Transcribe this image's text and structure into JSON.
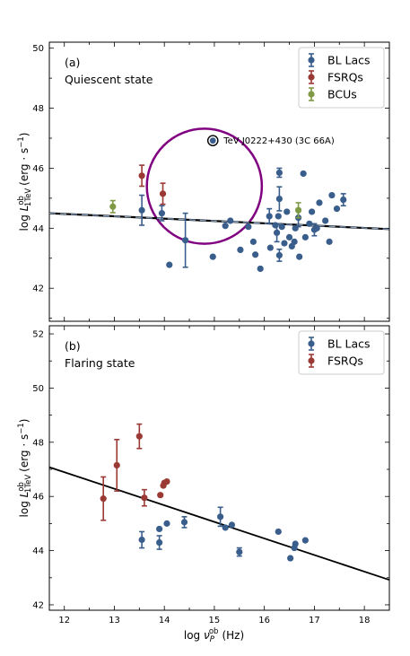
{
  "chart_data": [
    {
      "type": "scatter",
      "panel_label": "(a)",
      "panel_title": "Quiescent state",
      "ylabel_base": "log L",
      "ylabel_sup": "ob",
      "ylabel_sub": "1TeV",
      "ylabel_unit": "(erg · s",
      "ylabel_unit_exp": "−1",
      "ylabel_close": ")",
      "xlim": [
        11.7,
        18.5
      ],
      "ylim": [
        40.9,
        50.2
      ],
      "yticks": [
        "42",
        "44",
        "46",
        "48",
        "50"
      ],
      "ytick_values": [
        42,
        44,
        46,
        48,
        50
      ],
      "xticks": [
        "12",
        "13",
        "14",
        "15",
        "16",
        "17",
        "18"
      ],
      "xtick_values": [
        12,
        13,
        14,
        15,
        16,
        17,
        18
      ],
      "show_x_tick_labels": false,
      "legend_position": "top-right",
      "series": [
        {
          "name": "BL Lacs",
          "color": "#3a5e8c",
          "points": [
            {
              "x": 13.55,
              "y": 44.6,
              "err": 0.5
            },
            {
              "x": 13.95,
              "y": 44.5,
              "err": 0.25
            },
            {
              "x": 14.1,
              "y": 42.78
            },
            {
              "x": 14.42,
              "y": 43.6,
              "err": 0.9
            },
            {
              "x": 14.97,
              "y": 43.05
            },
            {
              "x": 15.22,
              "y": 44.08
            },
            {
              "x": 15.32,
              "y": 44.25
            },
            {
              "x": 15.52,
              "y": 43.28
            },
            {
              "x": 15.68,
              "y": 44.05
            },
            {
              "x": 15.78,
              "y": 43.55
            },
            {
              "x": 15.82,
              "y": 43.12
            },
            {
              "x": 15.92,
              "y": 42.65
            },
            {
              "x": 16.1,
              "y": 44.4,
              "err": 0.25
            },
            {
              "x": 16.12,
              "y": 43.35
            },
            {
              "x": 16.22,
              "y": 44.1
            },
            {
              "x": 16.25,
              "y": 43.85,
              "err": 0.3
            },
            {
              "x": 16.28,
              "y": 44.4
            },
            {
              "x": 16.3,
              "y": 45.85,
              "err": 0.15
            },
            {
              "x": 16.3,
              "y": 44.98,
              "err": 0.4
            },
            {
              "x": 16.3,
              "y": 43.1,
              "err": 0.2
            },
            {
              "x": 16.35,
              "y": 44.05
            },
            {
              "x": 16.4,
              "y": 43.5
            },
            {
              "x": 16.45,
              "y": 44.55
            },
            {
              "x": 16.5,
              "y": 43.7
            },
            {
              "x": 16.55,
              "y": 43.4
            },
            {
              "x": 16.6,
              "y": 43.55
            },
            {
              "x": 16.62,
              "y": 44.0
            },
            {
              "x": 16.68,
              "y": 44.35,
              "err": 0.3
            },
            {
              "x": 16.7,
              "y": 43.05
            },
            {
              "x": 16.78,
              "y": 45.82
            },
            {
              "x": 16.82,
              "y": 43.7
            },
            {
              "x": 16.9,
              "y": 44.15
            },
            {
              "x": 16.95,
              "y": 44.55
            },
            {
              "x": 17.0,
              "y": 43.95,
              "err": 0.2
            },
            {
              "x": 17.05,
              "y": 44.0
            },
            {
              "x": 17.1,
              "y": 44.85
            },
            {
              "x": 17.22,
              "y": 44.25
            },
            {
              "x": 17.3,
              "y": 43.55
            },
            {
              "x": 17.35,
              "y": 45.1
            },
            {
              "x": 17.45,
              "y": 44.65
            },
            {
              "x": 17.58,
              "y": 44.95,
              "err": 0.2
            }
          ]
        },
        {
          "name": "FSRQs",
          "color": "#9b3a35",
          "points": [
            {
              "x": 13.55,
              "y": 45.75,
              "err": 0.35
            },
            {
              "x": 13.97,
              "y": 45.15,
              "err": 0.35
            }
          ]
        },
        {
          "name": "BCUs",
          "color": "#7f9a45",
          "points": [
            {
              "x": 12.97,
              "y": 44.72,
              "err": 0.2
            },
            {
              "x": 16.68,
              "y": 44.6,
              "err": 0.25
            }
          ]
        }
      ],
      "fit_line": {
        "x": [
          11.7,
          18.5
        ],
        "y": [
          44.5,
          43.97
        ],
        "style": "dashed"
      },
      "outlier": {
        "x": 14.97,
        "y": 46.92,
        "label": "TeV J0222+430 (3C 66A)"
      },
      "circle": {
        "cx": 14.8,
        "cy": 45.4,
        "r_data_x": 1.15,
        "r_data_y": 1.3,
        "color": "#800080"
      }
    },
    {
      "type": "scatter",
      "panel_label": "(b)",
      "panel_title": "Flaring state",
      "ylabel_base": "log L",
      "ylabel_sup": "ob",
      "ylabel_sub": "1TeV",
      "ylabel_unit": "(erg · s",
      "ylabel_unit_exp": "−1",
      "ylabel_close": ")",
      "xlabel_base": "log ν",
      "xlabel_sub": "P",
      "xlabel_sup": "ob",
      "xlabel_unit": "(Hz)",
      "xlim": [
        11.7,
        18.5
      ],
      "ylim": [
        41.8,
        52.3
      ],
      "yticks": [
        "42",
        "44",
        "46",
        "48",
        "50",
        "52"
      ],
      "ytick_values": [
        42,
        44,
        46,
        48,
        50,
        52
      ],
      "xticks": [
        "12",
        "13",
        "14",
        "15",
        "16",
        "17",
        "18"
      ],
      "xtick_values": [
        12,
        13,
        14,
        15,
        16,
        17,
        18
      ],
      "show_x_tick_labels": true,
      "legend_position": "top-right",
      "series": [
        {
          "name": "BL Lacs",
          "color": "#3a5e8c",
          "points": [
            {
              "x": 13.55,
              "y": 44.4,
              "err": 0.3
            },
            {
              "x": 13.9,
              "y": 44.3,
              "err": 0.25
            },
            {
              "x": 13.9,
              "y": 44.8
            },
            {
              "x": 14.05,
              "y": 45.0
            },
            {
              "x": 14.4,
              "y": 45.05,
              "err": 0.2
            },
            {
              "x": 15.12,
              "y": 45.25,
              "err": 0.35
            },
            {
              "x": 15.22,
              "y": 44.85
            },
            {
              "x": 15.35,
              "y": 44.95
            },
            {
              "x": 15.5,
              "y": 43.95,
              "err": 0.15
            },
            {
              "x": 16.28,
              "y": 44.7
            },
            {
              "x": 16.52,
              "y": 43.72
            },
            {
              "x": 16.6,
              "y": 44.1
            },
            {
              "x": 16.62,
              "y": 44.25
            },
            {
              "x": 16.82,
              "y": 44.38
            }
          ]
        },
        {
          "name": "FSRQs",
          "color": "#9b3a35",
          "points": [
            {
              "x": 12.78,
              "y": 45.92,
              "err": 0.8
            },
            {
              "x": 13.05,
              "y": 47.15,
              "err": 0.95
            },
            {
              "x": 13.5,
              "y": 48.22,
              "err": 0.45
            },
            {
              "x": 13.6,
              "y": 45.95,
              "err": 0.3
            },
            {
              "x": 13.92,
              "y": 46.05
            },
            {
              "x": 13.98,
              "y": 46.4
            },
            {
              "x": 14.05,
              "y": 46.55
            },
            {
              "x": 14.0,
              "y": 46.5
            }
          ]
        }
      ],
      "fit_line": {
        "x": [
          11.7,
          18.5
        ],
        "y": [
          47.08,
          42.92
        ],
        "style": "solid"
      }
    }
  ]
}
